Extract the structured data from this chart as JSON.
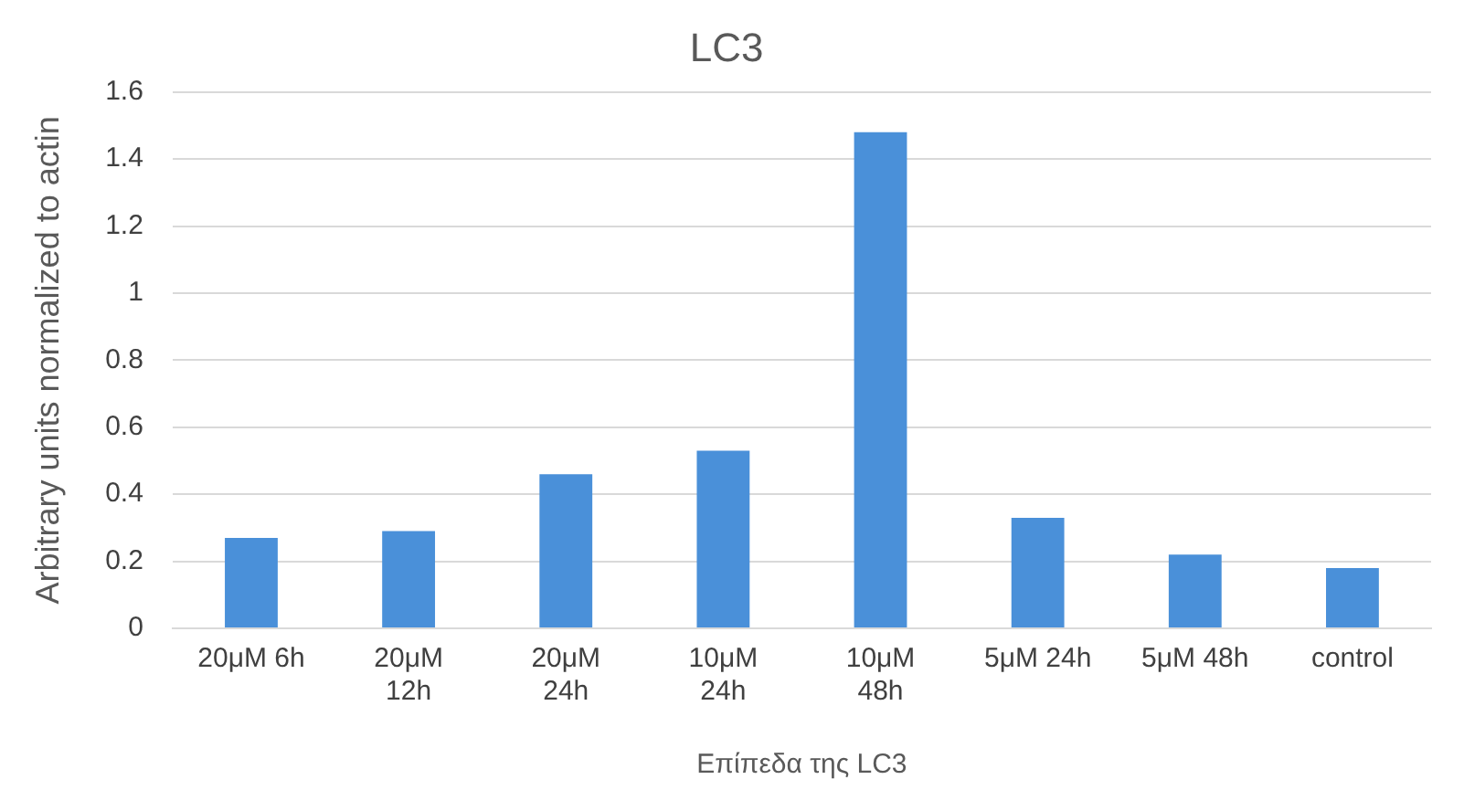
{
  "chart_data": {
    "type": "bar",
    "title": "LC3",
    "xlabel": "Επίπεδα της LC3",
    "ylabel": "Arbitrary units normalized to actin",
    "categories": [
      "20μM 6h",
      "20μM 12h",
      "20μM 24h",
      "10μM 24h",
      "10μM 48h",
      "5μM 24h",
      "5μM 48h",
      "control"
    ],
    "values": [
      0.27,
      0.29,
      0.46,
      0.53,
      1.48,
      0.33,
      0.22,
      0.18
    ],
    "color": "#4a90d9",
    "ylim": [
      0,
      1.6
    ],
    "yticks": [
      0,
      0.2,
      0.4,
      0.6,
      0.8,
      1,
      1.2,
      1.4,
      1.6
    ],
    "grid": "y"
  }
}
